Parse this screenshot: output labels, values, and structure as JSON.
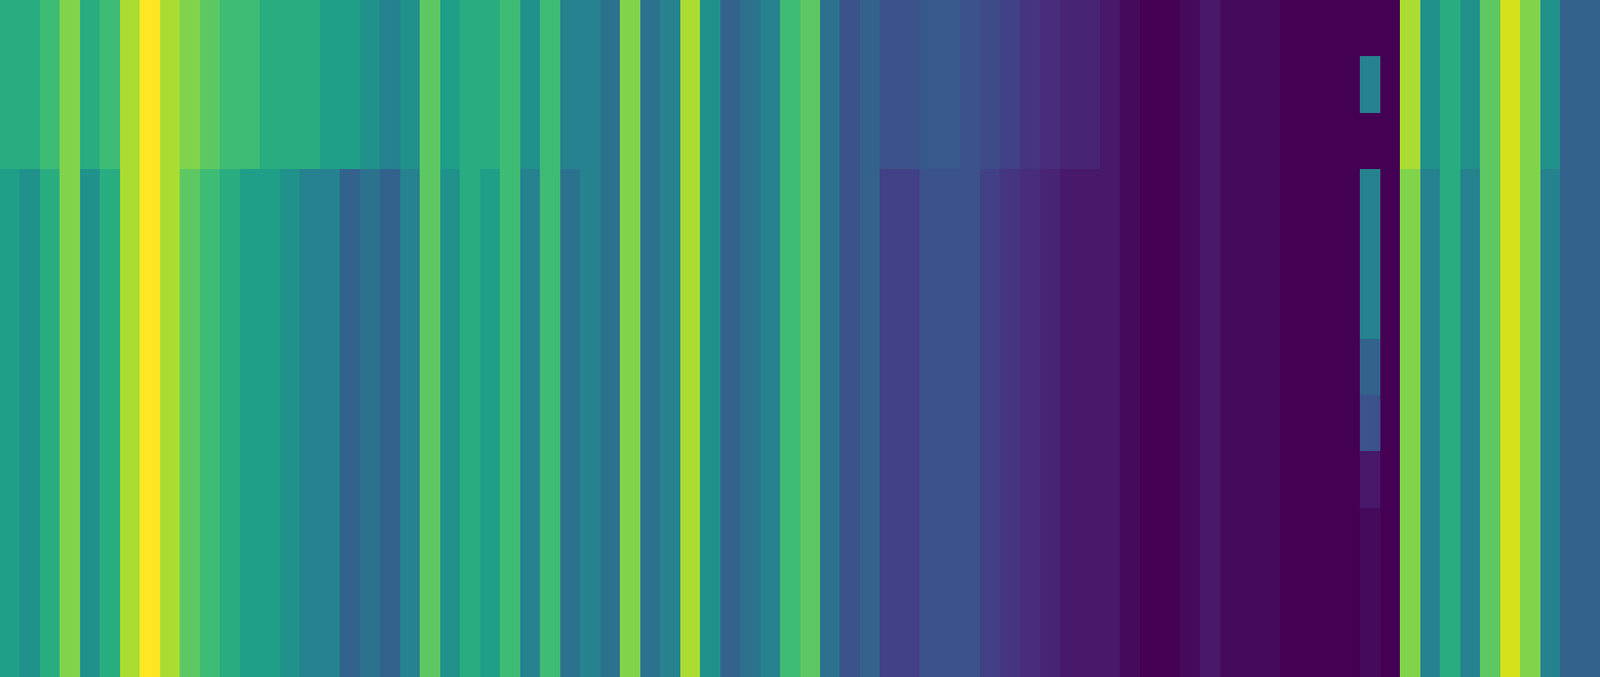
{
  "chart_data": {
    "type": "heatmap",
    "color": "viridis",
    "tick_labels": false,
    "cells": [
      [
        0.6,
        0.6,
        0.65,
        0.75,
        0.6,
        0.65,
        0.8,
        0.9,
        0.8,
        0.75,
        0.7,
        0.65,
        0.65,
        0.6,
        0.6,
        0.6,
        0.55,
        0.55,
        0.5,
        0.45,
        0.5,
        0.7,
        0.55,
        0.6,
        0.6,
        0.65,
        0.5,
        0.65,
        0.45,
        0.45,
        0.4,
        0.75,
        0.4,
        0.45,
        0.8,
        0.5,
        0.35,
        0.4,
        0.45,
        0.65,
        0.7,
        0.4,
        0.3,
        0.35,
        0.3,
        0.3,
        0.32,
        0.32,
        0.3,
        0.28,
        0.25,
        0.22,
        0.2,
        0.18,
        0.18,
        0.15,
        0.12,
        0.1,
        0.1,
        0.12,
        0.15,
        0.12,
        0.12,
        0.12,
        0.1,
        0.1,
        0.1,
        0.1,
        0.1,
        0.1,
        0.8,
        0.5,
        0.6,
        0.5,
        0.7,
        0.85,
        0.75,
        0.5,
        0.35,
        0.35
      ],
      [
        0.6,
        0.6,
        0.65,
        0.75,
        0.6,
        0.65,
        0.8,
        0.9,
        0.8,
        0.75,
        0.7,
        0.65,
        0.65,
        0.6,
        0.6,
        0.6,
        0.55,
        0.55,
        0.5,
        0.45,
        0.5,
        0.7,
        0.55,
        0.6,
        0.6,
        0.65,
        0.5,
        0.65,
        0.45,
        0.45,
        0.4,
        0.75,
        0.4,
        0.45,
        0.8,
        0.5,
        0.35,
        0.4,
        0.45,
        0.65,
        0.7,
        0.4,
        0.3,
        0.35,
        0.3,
        0.3,
        0.32,
        0.32,
        0.3,
        0.28,
        0.25,
        0.22,
        0.2,
        0.18,
        0.18,
        0.15,
        0.12,
        0.1,
        0.1,
        0.12,
        0.15,
        0.12,
        0.12,
        0.12,
        0.1,
        0.1,
        0.1,
        0.1,
        0.45,
        0.1,
        0.8,
        0.5,
        0.6,
        0.5,
        0.7,
        0.85,
        0.75,
        0.5,
        0.35,
        0.35
      ],
      [
        0.6,
        0.6,
        0.65,
        0.75,
        0.6,
        0.65,
        0.8,
        0.9,
        0.8,
        0.75,
        0.7,
        0.65,
        0.65,
        0.6,
        0.6,
        0.6,
        0.55,
        0.55,
        0.5,
        0.45,
        0.5,
        0.7,
        0.55,
        0.6,
        0.6,
        0.65,
        0.5,
        0.65,
        0.45,
        0.45,
        0.4,
        0.75,
        0.4,
        0.45,
        0.8,
        0.5,
        0.35,
        0.4,
        0.45,
        0.65,
        0.7,
        0.4,
        0.3,
        0.35,
        0.3,
        0.3,
        0.32,
        0.32,
        0.3,
        0.28,
        0.25,
        0.22,
        0.2,
        0.18,
        0.18,
        0.15,
        0.12,
        0.1,
        0.1,
        0.12,
        0.15,
        0.12,
        0.12,
        0.12,
        0.1,
        0.1,
        0.1,
        0.1,
        0.1,
        0.1,
        0.8,
        0.5,
        0.6,
        0.5,
        0.7,
        0.85,
        0.75,
        0.5,
        0.35,
        0.35
      ],
      [
        0.55,
        0.5,
        0.6,
        0.75,
        0.5,
        0.6,
        0.8,
        0.9,
        0.8,
        0.7,
        0.65,
        0.6,
        0.55,
        0.55,
        0.5,
        0.45,
        0.45,
        0.35,
        0.4,
        0.35,
        0.45,
        0.7,
        0.5,
        0.6,
        0.55,
        0.65,
        0.45,
        0.65,
        0.4,
        0.45,
        0.4,
        0.75,
        0.4,
        0.45,
        0.8,
        0.5,
        0.35,
        0.4,
        0.45,
        0.65,
        0.7,
        0.4,
        0.3,
        0.35,
        0.25,
        0.25,
        0.3,
        0.3,
        0.3,
        0.25,
        0.22,
        0.2,
        0.18,
        0.15,
        0.15,
        0.15,
        0.12,
        0.1,
        0.1,
        0.12,
        0.15,
        0.12,
        0.12,
        0.12,
        0.1,
        0.1,
        0.1,
        0.1,
        0.45,
        0.1,
        0.75,
        0.45,
        0.6,
        0.45,
        0.7,
        0.85,
        0.75,
        0.45,
        0.35,
        0.35
      ],
      [
        0.55,
        0.5,
        0.6,
        0.75,
        0.5,
        0.6,
        0.8,
        0.9,
        0.8,
        0.7,
        0.65,
        0.6,
        0.55,
        0.55,
        0.5,
        0.45,
        0.45,
        0.35,
        0.4,
        0.35,
        0.45,
        0.7,
        0.5,
        0.6,
        0.55,
        0.65,
        0.45,
        0.65,
        0.4,
        0.45,
        0.4,
        0.75,
        0.4,
        0.45,
        0.8,
        0.5,
        0.35,
        0.4,
        0.45,
        0.65,
        0.7,
        0.4,
        0.3,
        0.35,
        0.25,
        0.25,
        0.3,
        0.3,
        0.3,
        0.25,
        0.22,
        0.2,
        0.18,
        0.15,
        0.15,
        0.15,
        0.12,
        0.1,
        0.1,
        0.12,
        0.15,
        0.12,
        0.12,
        0.12,
        0.1,
        0.1,
        0.1,
        0.1,
        0.45,
        0.1,
        0.75,
        0.45,
        0.6,
        0.45,
        0.7,
        0.85,
        0.75,
        0.45,
        0.35,
        0.35
      ],
      [
        0.55,
        0.5,
        0.6,
        0.75,
        0.5,
        0.6,
        0.8,
        0.9,
        0.8,
        0.7,
        0.65,
        0.6,
        0.55,
        0.55,
        0.5,
        0.45,
        0.45,
        0.35,
        0.4,
        0.35,
        0.45,
        0.7,
        0.5,
        0.6,
        0.55,
        0.65,
        0.45,
        0.65,
        0.4,
        0.45,
        0.4,
        0.75,
        0.4,
        0.45,
        0.8,
        0.5,
        0.35,
        0.4,
        0.45,
        0.65,
        0.7,
        0.4,
        0.3,
        0.35,
        0.25,
        0.25,
        0.3,
        0.3,
        0.3,
        0.25,
        0.22,
        0.2,
        0.18,
        0.15,
        0.15,
        0.15,
        0.12,
        0.1,
        0.1,
        0.12,
        0.15,
        0.12,
        0.12,
        0.12,
        0.1,
        0.1,
        0.1,
        0.1,
        0.45,
        0.1,
        0.75,
        0.45,
        0.6,
        0.45,
        0.7,
        0.85,
        0.75,
        0.45,
        0.35,
        0.35
      ],
      [
        0.55,
        0.5,
        0.6,
        0.75,
        0.5,
        0.6,
        0.8,
        0.9,
        0.8,
        0.7,
        0.65,
        0.6,
        0.55,
        0.55,
        0.5,
        0.45,
        0.45,
        0.35,
        0.4,
        0.35,
        0.45,
        0.7,
        0.5,
        0.6,
        0.55,
        0.65,
        0.45,
        0.65,
        0.4,
        0.45,
        0.4,
        0.75,
        0.4,
        0.45,
        0.8,
        0.5,
        0.35,
        0.4,
        0.45,
        0.65,
        0.7,
        0.4,
        0.3,
        0.35,
        0.25,
        0.25,
        0.3,
        0.3,
        0.3,
        0.25,
        0.22,
        0.2,
        0.18,
        0.15,
        0.15,
        0.15,
        0.12,
        0.1,
        0.1,
        0.12,
        0.15,
        0.12,
        0.12,
        0.12,
        0.1,
        0.1,
        0.1,
        0.1,
        0.35,
        0.1,
        0.75,
        0.45,
        0.6,
        0.45,
        0.7,
        0.85,
        0.75,
        0.45,
        0.35,
        0.35
      ],
      [
        0.55,
        0.5,
        0.6,
        0.75,
        0.5,
        0.6,
        0.8,
        0.9,
        0.8,
        0.7,
        0.65,
        0.6,
        0.55,
        0.55,
        0.5,
        0.45,
        0.45,
        0.35,
        0.4,
        0.35,
        0.45,
        0.7,
        0.5,
        0.6,
        0.55,
        0.65,
        0.45,
        0.65,
        0.4,
        0.45,
        0.4,
        0.75,
        0.4,
        0.45,
        0.8,
        0.5,
        0.35,
        0.4,
        0.45,
        0.65,
        0.7,
        0.4,
        0.3,
        0.35,
        0.25,
        0.25,
        0.3,
        0.3,
        0.3,
        0.25,
        0.22,
        0.2,
        0.18,
        0.15,
        0.15,
        0.15,
        0.12,
        0.1,
        0.1,
        0.12,
        0.15,
        0.12,
        0.12,
        0.12,
        0.1,
        0.1,
        0.1,
        0.1,
        0.3,
        0.1,
        0.75,
        0.45,
        0.6,
        0.45,
        0.7,
        0.85,
        0.75,
        0.45,
        0.35,
        0.35
      ],
      [
        0.55,
        0.5,
        0.6,
        0.75,
        0.5,
        0.6,
        0.8,
        0.9,
        0.8,
        0.7,
        0.65,
        0.6,
        0.55,
        0.55,
        0.5,
        0.45,
        0.45,
        0.35,
        0.4,
        0.35,
        0.45,
        0.7,
        0.5,
        0.6,
        0.55,
        0.65,
        0.45,
        0.65,
        0.4,
        0.45,
        0.4,
        0.75,
        0.4,
        0.45,
        0.8,
        0.5,
        0.35,
        0.4,
        0.45,
        0.65,
        0.7,
        0.4,
        0.3,
        0.35,
        0.25,
        0.25,
        0.3,
        0.3,
        0.3,
        0.25,
        0.22,
        0.2,
        0.18,
        0.15,
        0.15,
        0.15,
        0.12,
        0.1,
        0.1,
        0.12,
        0.15,
        0.12,
        0.12,
        0.12,
        0.1,
        0.1,
        0.1,
        0.1,
        0.15,
        0.1,
        0.75,
        0.45,
        0.6,
        0.45,
        0.7,
        0.85,
        0.75,
        0.45,
        0.35,
        0.35
      ],
      [
        0.55,
        0.5,
        0.6,
        0.75,
        0.5,
        0.6,
        0.8,
        0.9,
        0.8,
        0.7,
        0.65,
        0.6,
        0.55,
        0.55,
        0.5,
        0.45,
        0.45,
        0.35,
        0.4,
        0.35,
        0.45,
        0.7,
        0.5,
        0.6,
        0.55,
        0.65,
        0.45,
        0.65,
        0.4,
        0.45,
        0.4,
        0.75,
        0.4,
        0.45,
        0.8,
        0.5,
        0.35,
        0.4,
        0.45,
        0.65,
        0.7,
        0.4,
        0.3,
        0.35,
        0.25,
        0.25,
        0.3,
        0.3,
        0.3,
        0.25,
        0.22,
        0.2,
        0.18,
        0.15,
        0.15,
        0.15,
        0.12,
        0.1,
        0.1,
        0.12,
        0.15,
        0.12,
        0.12,
        0.12,
        0.1,
        0.1,
        0.1,
        0.1,
        0.12,
        0.1,
        0.75,
        0.45,
        0.6,
        0.45,
        0.7,
        0.85,
        0.75,
        0.45,
        0.35,
        0.35
      ],
      [
        0.55,
        0.5,
        0.6,
        0.75,
        0.5,
        0.6,
        0.8,
        0.9,
        0.8,
        0.7,
        0.65,
        0.6,
        0.55,
        0.55,
        0.5,
        0.45,
        0.45,
        0.35,
        0.4,
        0.35,
        0.45,
        0.7,
        0.5,
        0.6,
        0.55,
        0.65,
        0.45,
        0.65,
        0.4,
        0.45,
        0.4,
        0.75,
        0.4,
        0.45,
        0.8,
        0.5,
        0.35,
        0.4,
        0.45,
        0.65,
        0.7,
        0.4,
        0.3,
        0.35,
        0.25,
        0.25,
        0.3,
        0.3,
        0.3,
        0.25,
        0.22,
        0.2,
        0.18,
        0.15,
        0.15,
        0.15,
        0.12,
        0.1,
        0.1,
        0.12,
        0.15,
        0.12,
        0.12,
        0.12,
        0.1,
        0.1,
        0.1,
        0.1,
        0.12,
        0.1,
        0.75,
        0.45,
        0.6,
        0.45,
        0.7,
        0.85,
        0.75,
        0.45,
        0.35,
        0.35
      ],
      [
        0.55,
        0.5,
        0.6,
        0.75,
        0.5,
        0.6,
        0.8,
        0.9,
        0.8,
        0.7,
        0.65,
        0.6,
        0.55,
        0.55,
        0.5,
        0.45,
        0.45,
        0.35,
        0.4,
        0.35,
        0.45,
        0.7,
        0.5,
        0.6,
        0.55,
        0.65,
        0.45,
        0.65,
        0.4,
        0.45,
        0.4,
        0.75,
        0.4,
        0.45,
        0.8,
        0.5,
        0.35,
        0.4,
        0.45,
        0.65,
        0.7,
        0.4,
        0.3,
        0.35,
        0.25,
        0.25,
        0.3,
        0.3,
        0.3,
        0.25,
        0.22,
        0.2,
        0.18,
        0.15,
        0.15,
        0.15,
        0.12,
        0.1,
        0.1,
        0.12,
        0.15,
        0.12,
        0.12,
        0.12,
        0.1,
        0.1,
        0.1,
        0.1,
        0.12,
        0.1,
        0.75,
        0.45,
        0.6,
        0.45,
        0.7,
        0.85,
        0.75,
        0.45,
        0.35,
        0.35
      ]
    ]
  }
}
